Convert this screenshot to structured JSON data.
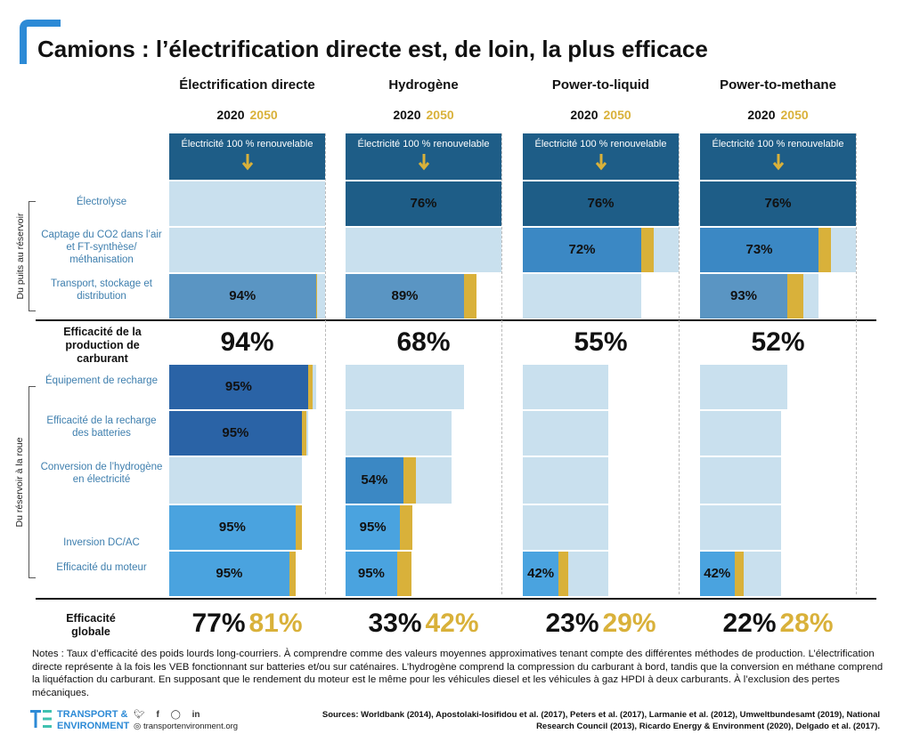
{
  "title": "Camions : l’électrification directe est, de loin, la plus efficace",
  "years": {
    "y1": "2020",
    "y2": "2050"
  },
  "columns": [
    {
      "name": "Électrification directe"
    },
    {
      "name": "Hydrogène"
    },
    {
      "name": "Power-to-liquid"
    },
    {
      "name": "Power-to-methane"
    }
  ],
  "electricity_label": "Électricité 100 % renouvelable",
  "row_labels": {
    "electrolyse": "Électrolyse",
    "captage": "Captage du CO2 dans l’air et FT-synthèse/ méthanisation",
    "transport": "Transport, stockage et distribution",
    "equipement": "Équipement de recharge",
    "recharge": "Efficacité de la recharge des batteries",
    "conversion": "Conversion de l’hydrogène en électricité",
    "inversion": "Inversion DC/AC",
    "moteur": "Efficacité du moteur"
  },
  "group_labels": {
    "well_to_tank": "Du puits au réservoir",
    "tank_to_wheel": "Du réservoir à la roue"
  },
  "summary_labels": {
    "production": "Efficacité de la production de carburant",
    "globale": "Efficacité globale"
  },
  "colors": {
    "dark_blue": "#1e5d87",
    "mid_blue": "#3b88c4",
    "bright_blue": "#4aa3df",
    "light_blue": "#c9e0ee",
    "gold": "#d9b13a"
  },
  "chart_data": {
    "type": "bar",
    "title": "Camions : l’électrification directe est, de loin, la plus efficace",
    "categories": [
      "Électrification directe",
      "Hydrogène",
      "Power-to-liquid",
      "Power-to-methane"
    ],
    "steps": [
      "Électrolyse",
      "Captage du CO2 dans l’air et FT-synthèse/ méthanisation",
      "Transport, stockage et distribution",
      "Équipement de recharge",
      "Efficacité de la recharge des batteries",
      "Conversion de l’hydrogène en électricité",
      "Inversion DC/AC",
      "Efficacité du moteur"
    ],
    "step_efficiency_2020": [
      {
        "Transport, stockage et distribution": "94%",
        "Équipement de recharge": "95%",
        "Efficacité de la recharge des batteries": "95%",
        "Inversion DC/AC": "95%",
        "Efficacité du moteur": "95%"
      },
      {
        "Électrolyse": "76%",
        "Transport, stockage et distribution": "89%",
        "Conversion de l’hydrogène en électricité": "54%",
        "Inversion DC/AC": "95%",
        "Efficacité du moteur": "95%"
      },
      {
        "Électrolyse": "76%",
        "Captage du CO2 dans l’air et FT-synthèse/ méthanisation": "72%",
        "Efficacité du moteur": "42%"
      },
      {
        "Électrolyse": "76%",
        "Captage du CO2 dans l’air et FT-synthèse/ méthanisation": "73%",
        "Transport, stockage et distribution": "93%",
        "Efficacité du moteur": "42%"
      }
    ],
    "fuel_production_efficiency": [
      "94%",
      "68%",
      "55%",
      "52%"
    ],
    "overall_efficiency": {
      "2020": [
        "77%",
        "33%",
        "23%",
        "22%"
      ],
      "2050": [
        "81%",
        "42%",
        "29%",
        "28%"
      ]
    },
    "remaining_energy_2020": [
      [
        100,
        100,
        94,
        89,
        85,
        85,
        81,
        77
      ],
      [
        100,
        76,
        76,
        68,
        68,
        37,
        35,
        33
      ],
      [
        100,
        76,
        55,
        55,
        55,
        55,
        55,
        23
      ],
      [
        100,
        76,
        56,
        52,
        52,
        52,
        52,
        22
      ]
    ],
    "remaining_energy_2050": [
      [
        100,
        100,
        95,
        92,
        88,
        88,
        85,
        81
      ],
      [
        100,
        84,
        84,
        75,
        75,
        45,
        43,
        42
      ],
      [
        100,
        84,
        63,
        63,
        63,
        63,
        63,
        29
      ],
      [
        100,
        84,
        66,
        61,
        61,
        61,
        61,
        28
      ]
    ],
    "shown_steps": [
      [
        2,
        3,
        4,
        6,
        7
      ],
      [
        0,
        2,
        5,
        6,
        7
      ],
      [
        0,
        1,
        7
      ],
      [
        0,
        1,
        2,
        7
      ]
    ],
    "step_colors": [
      "dark",
      "mid",
      "steel",
      "deep",
      "deep",
      "mid",
      "bright",
      "bright"
    ]
  },
  "notes": "Notes : Taux d’efficacité des poids lourds long-courriers. À comprendre comme des valeurs moyennes approximatives tenant compte des différentes méthodes de production. L’électrification directe représente à la fois les VEB fonctionnant sur batteries et/ou sur caténaires. L’hydrogène comprend la compression du carburant à bord, tandis que la conversion en méthane comprend la liquéfaction du carburant. En supposant que le rendement du moteur est le même pour les véhicules diesel et les véhicules à gaz HPDI à deux carburants. À l’exclusion des pertes mécaniques.",
  "sources": "Sources: Worldbank (2014), Apostolaki-Iosifidou et al. (2017), Peters et al. (2017), Larmanie et al. (2012), Umweltbundesamt (2019), National Research Council (2013), Ricardo Energy & Environment (2020), Delgado et al. (2017).",
  "logo": {
    "line1": "TRANSPORT &",
    "line2": "ENVIRONMENT",
    "mark": "TE"
  },
  "website": "transportenvironment.org",
  "social_icons": [
    "twitter-icon",
    "facebook-icon",
    "instagram-icon",
    "linkedin-icon"
  ]
}
